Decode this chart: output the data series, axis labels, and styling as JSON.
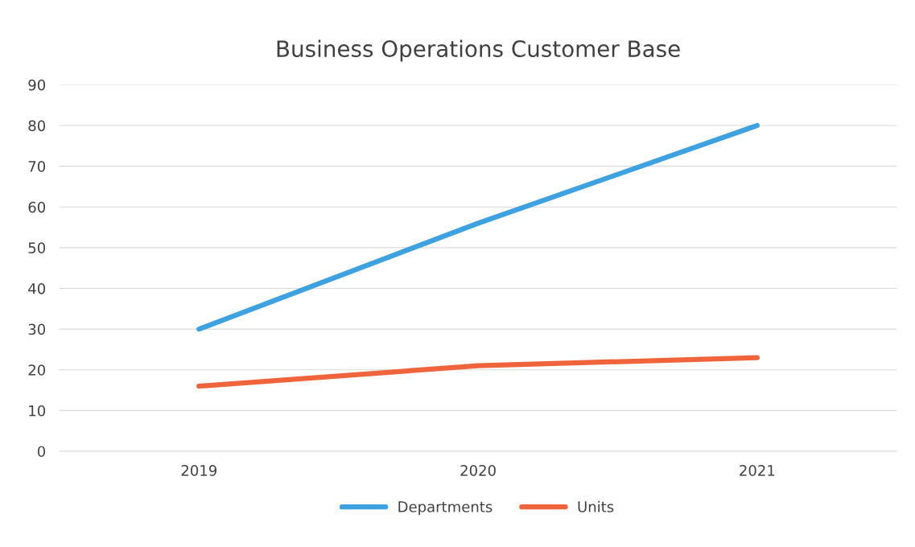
{
  "chart_data": {
    "type": "line",
    "title": "Business Operations Customer Base",
    "categories": [
      "2019",
      "2020",
      "2021"
    ],
    "series": [
      {
        "name": "Departments",
        "color": "#3ea1e0",
        "values": [
          30,
          56,
          80
        ]
      },
      {
        "name": "Units",
        "color": "#f0643c",
        "values": [
          16,
          21,
          23
        ]
      }
    ],
    "ylim": [
      0,
      90
    ],
    "yticks": [
      0,
      10,
      20,
      30,
      40,
      50,
      60,
      70,
      80,
      90
    ],
    "grid": "y",
    "legend": "bottom",
    "marker": "none",
    "line_style": "solid"
  }
}
